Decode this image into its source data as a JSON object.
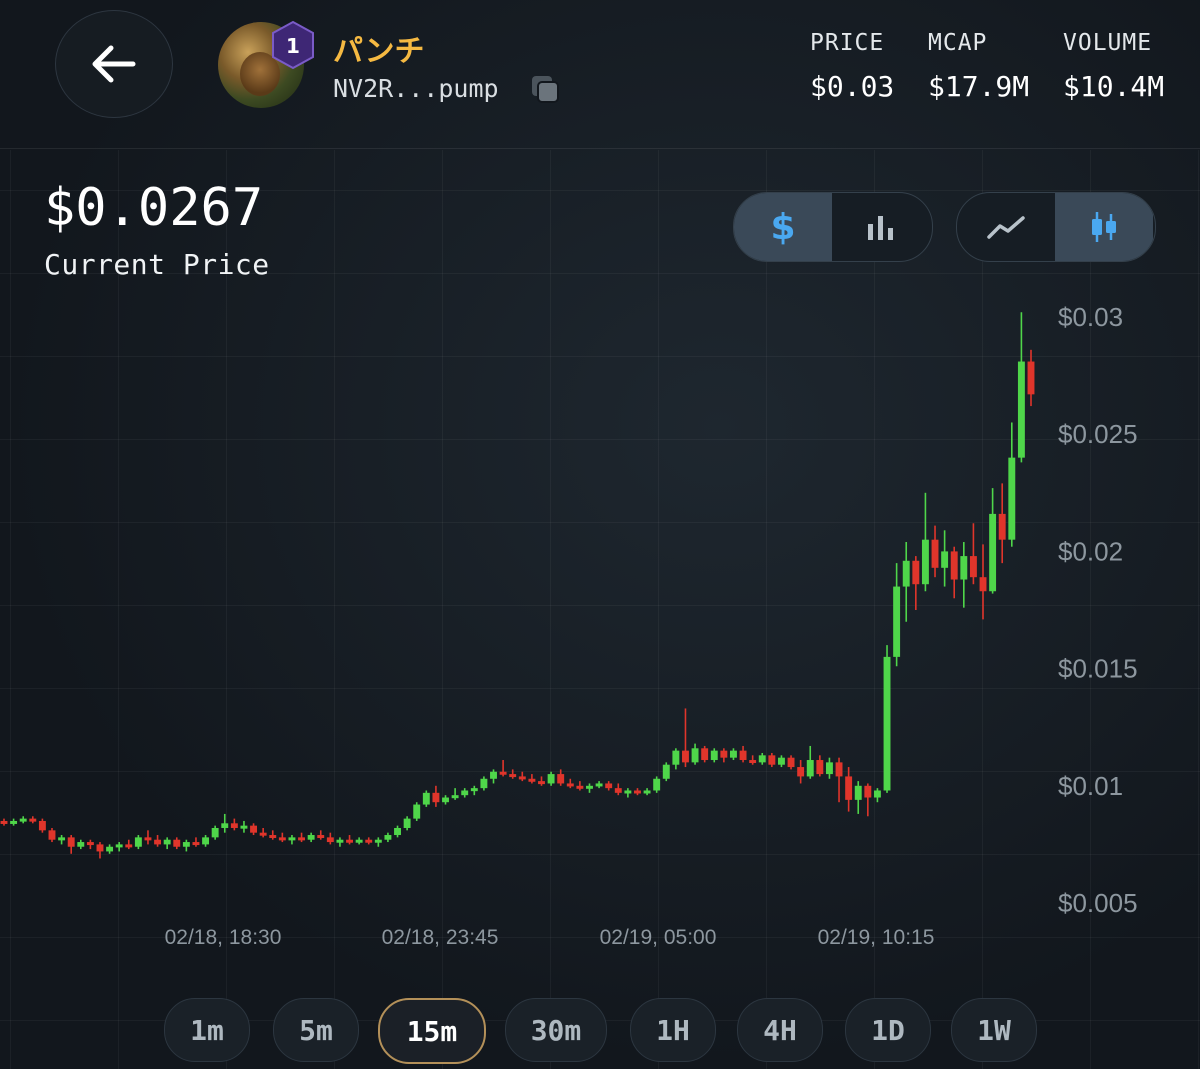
{
  "token": {
    "name": "パンチ",
    "address": "NV2R...pump",
    "rank": "1"
  },
  "stats": [
    {
      "label": "PRICE",
      "value": "$0.03"
    },
    {
      "label": "MCAP",
      "value": "$17.9M"
    },
    {
      "label": "VOLUME",
      "value": "$10.4M"
    }
  ],
  "current": {
    "price": "$0.0267",
    "label": "Current Price"
  },
  "toggles": {
    "unit": {
      "dollar": "$",
      "active": "dollar"
    },
    "chart_style": {
      "active": "candles"
    }
  },
  "timeframes": [
    "1m",
    "5m",
    "15m",
    "30m",
    "1H",
    "4H",
    "1D",
    "1W"
  ],
  "active_timeframe": "15m",
  "colors": {
    "up": "#4fd64a",
    "down": "#e0352b",
    "accent": "#f5b942",
    "grid": "#222a31"
  },
  "chart_data": {
    "type": "candlestick",
    "title": "",
    "xlabel": "",
    "ylabel": "",
    "y_ticks": [
      "$0.03",
      "$0.025",
      "$0.02",
      "$0.015",
      "$0.01",
      "$0.005"
    ],
    "y_tick_values": [
      0.03,
      0.025,
      0.02,
      0.015,
      0.01,
      0.005
    ],
    "x_ticks": [
      "02/18, 18:30",
      "02/18, 23:45",
      "02/19, 05:00",
      "02/19, 10:15"
    ],
    "ylim": [
      0.003,
      0.0321
    ],
    "grid": true,
    "candles": [
      [
        0.0085,
        0.0086,
        0.0083,
        0.0084
      ],
      [
        0.0084,
        0.0086,
        0.0083,
        0.0085
      ],
      [
        0.0085,
        0.0087,
        0.0084,
        0.0086
      ],
      [
        0.0086,
        0.0087,
        0.0084,
        0.0085
      ],
      [
        0.0085,
        0.0086,
        0.008,
        0.0081
      ],
      [
        0.0081,
        0.0082,
        0.0076,
        0.0077
      ],
      [
        0.0077,
        0.0079,
        0.0075,
        0.0078
      ],
      [
        0.0078,
        0.0079,
        0.0071,
        0.0074
      ],
      [
        0.0074,
        0.0077,
        0.0073,
        0.0076
      ],
      [
        0.0076,
        0.0077,
        0.0073,
        0.0075
      ],
      [
        0.0075,
        0.0076,
        0.0069,
        0.0072
      ],
      [
        0.0072,
        0.0075,
        0.0071,
        0.0074
      ],
      [
        0.0074,
        0.0076,
        0.0072,
        0.0075
      ],
      [
        0.0075,
        0.0077,
        0.0073,
        0.0074
      ],
      [
        0.0074,
        0.0079,
        0.0073,
        0.0078
      ],
      [
        0.0078,
        0.0081,
        0.0075,
        0.0077
      ],
      [
        0.0077,
        0.0079,
        0.0074,
        0.0075
      ],
      [
        0.0075,
        0.0078,
        0.0073,
        0.0077
      ],
      [
        0.0077,
        0.0078,
        0.0073,
        0.0074
      ],
      [
        0.0074,
        0.0077,
        0.0072,
        0.0076
      ],
      [
        0.0076,
        0.0078,
        0.0074,
        0.0075
      ],
      [
        0.0075,
        0.0079,
        0.0074,
        0.0078
      ],
      [
        0.0078,
        0.0083,
        0.0077,
        0.0082
      ],
      [
        0.0082,
        0.0088,
        0.008,
        0.0084
      ],
      [
        0.0084,
        0.0086,
        0.0081,
        0.0082
      ],
      [
        0.0082,
        0.0085,
        0.008,
        0.0083
      ],
      [
        0.0083,
        0.0084,
        0.0079,
        0.008
      ],
      [
        0.008,
        0.0082,
        0.0078,
        0.0079
      ],
      [
        0.0079,
        0.0081,
        0.0077,
        0.0078
      ],
      [
        0.0078,
        0.008,
        0.0076,
        0.0077
      ],
      [
        0.0077,
        0.0079,
        0.0075,
        0.0078
      ],
      [
        0.0078,
        0.008,
        0.0076,
        0.0077
      ],
      [
        0.0077,
        0.008,
        0.0076,
        0.0079
      ],
      [
        0.0079,
        0.0081,
        0.0077,
        0.0078
      ],
      [
        0.0078,
        0.008,
        0.0075,
        0.0076
      ],
      [
        0.0076,
        0.0078,
        0.0074,
        0.0077
      ],
      [
        0.0077,
        0.0079,
        0.0075,
        0.0076
      ],
      [
        0.0076,
        0.0078,
        0.0075,
        0.0077
      ],
      [
        0.0077,
        0.0078,
        0.0075,
        0.0076
      ],
      [
        0.0076,
        0.0078,
        0.0074,
        0.0077
      ],
      [
        0.0077,
        0.008,
        0.0076,
        0.0079
      ],
      [
        0.0079,
        0.0083,
        0.0078,
        0.0082
      ],
      [
        0.0082,
        0.0087,
        0.0081,
        0.0086
      ],
      [
        0.0086,
        0.0093,
        0.0085,
        0.0092
      ],
      [
        0.0092,
        0.0098,
        0.0091,
        0.0097
      ],
      [
        0.0097,
        0.01,
        0.0091,
        0.0093
      ],
      [
        0.0093,
        0.0096,
        0.0092,
        0.0095
      ],
      [
        0.0095,
        0.0099,
        0.0094,
        0.0096
      ],
      [
        0.0096,
        0.0099,
        0.0095,
        0.0098
      ],
      [
        0.0098,
        0.01,
        0.0096,
        0.0099
      ],
      [
        0.0099,
        0.0104,
        0.0098,
        0.0103
      ],
      [
        0.0103,
        0.0107,
        0.0101,
        0.0106
      ],
      [
        0.0106,
        0.0111,
        0.0104,
        0.0105
      ],
      [
        0.0105,
        0.0107,
        0.0103,
        0.0104
      ],
      [
        0.0104,
        0.0106,
        0.0102,
        0.0103
      ],
      [
        0.0103,
        0.0105,
        0.0101,
        0.0102
      ],
      [
        0.0102,
        0.0104,
        0.01,
        0.0101
      ],
      [
        0.0101,
        0.0106,
        0.01,
        0.0105
      ],
      [
        0.0105,
        0.0107,
        0.01,
        0.0101
      ],
      [
        0.0101,
        0.0103,
        0.0099,
        0.01
      ],
      [
        0.01,
        0.0102,
        0.0098,
        0.0099
      ],
      [
        0.0099,
        0.0101,
        0.0097,
        0.01
      ],
      [
        0.01,
        0.0102,
        0.0099,
        0.0101
      ],
      [
        0.0101,
        0.0102,
        0.0098,
        0.0099
      ],
      [
        0.0099,
        0.0101,
        0.0096,
        0.0097
      ],
      [
        0.0097,
        0.0099,
        0.0095,
        0.0098
      ],
      [
        0.0098,
        0.0099,
        0.0096,
        0.0097
      ],
      [
        0.0097,
        0.0099,
        0.0096,
        0.0098
      ],
      [
        0.0098,
        0.0104,
        0.0097,
        0.0103
      ],
      [
        0.0103,
        0.011,
        0.0102,
        0.0109
      ],
      [
        0.0109,
        0.0116,
        0.0107,
        0.0115
      ],
      [
        0.0115,
        0.0133,
        0.0108,
        0.011
      ],
      [
        0.011,
        0.0118,
        0.0109,
        0.0116
      ],
      [
        0.0116,
        0.0117,
        0.011,
        0.0111
      ],
      [
        0.0111,
        0.0116,
        0.011,
        0.0115
      ],
      [
        0.0115,
        0.0116,
        0.011,
        0.0112
      ],
      [
        0.0112,
        0.0116,
        0.0111,
        0.0115
      ],
      [
        0.0115,
        0.0117,
        0.011,
        0.0111
      ],
      [
        0.0111,
        0.0113,
        0.0109,
        0.011
      ],
      [
        0.011,
        0.0114,
        0.0109,
        0.0113
      ],
      [
        0.0113,
        0.0114,
        0.0108,
        0.0109
      ],
      [
        0.0109,
        0.0113,
        0.0108,
        0.0112
      ],
      [
        0.0112,
        0.0113,
        0.0107,
        0.0108
      ],
      [
        0.0108,
        0.0111,
        0.0101,
        0.0104
      ],
      [
        0.0104,
        0.0117,
        0.0103,
        0.0111
      ],
      [
        0.0111,
        0.0113,
        0.0104,
        0.0105
      ],
      [
        0.0105,
        0.0112,
        0.0103,
        0.011
      ],
      [
        0.011,
        0.0112,
        0.0093,
        0.0104
      ],
      [
        0.0104,
        0.0108,
        0.0089,
        0.0094
      ],
      [
        0.0094,
        0.0102,
        0.0088,
        0.01
      ],
      [
        0.01,
        0.0101,
        0.0087,
        0.0095
      ],
      [
        0.0095,
        0.0099,
        0.0093,
        0.0098
      ],
      [
        0.0098,
        0.016,
        0.0097,
        0.0155
      ],
      [
        0.0155,
        0.0195,
        0.0151,
        0.0185
      ],
      [
        0.0185,
        0.0204,
        0.017,
        0.0196
      ],
      [
        0.0196,
        0.0198,
        0.0175,
        0.0186
      ],
      [
        0.0186,
        0.0225,
        0.0183,
        0.0205
      ],
      [
        0.0205,
        0.0211,
        0.0189,
        0.0193
      ],
      [
        0.0193,
        0.0209,
        0.0185,
        0.02
      ],
      [
        0.02,
        0.0202,
        0.018,
        0.0188
      ],
      [
        0.0188,
        0.0204,
        0.0176,
        0.0198
      ],
      [
        0.0198,
        0.0212,
        0.0186,
        0.0189
      ],
      [
        0.0189,
        0.0203,
        0.0171,
        0.0183
      ],
      [
        0.0183,
        0.0227,
        0.0182,
        0.0216
      ],
      [
        0.0216,
        0.0229,
        0.0195,
        0.0205
      ],
      [
        0.0205,
        0.0255,
        0.0202,
        0.024
      ],
      [
        0.024,
        0.0302,
        0.0238,
        0.0281
      ],
      [
        0.0281,
        0.0286,
        0.0262,
        0.0267
      ]
    ]
  }
}
